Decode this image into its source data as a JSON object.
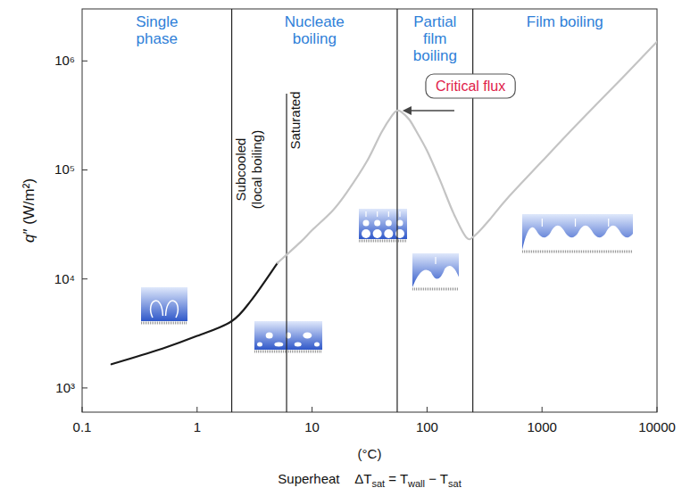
{
  "chart_data": {
    "type": "line",
    "log": true,
    "grid": false,
    "ylabel": "q″ (W/m²)",
    "xlabel": "(°C)",
    "xlabel2": [
      {
        "text": "Superheat    ΔT",
        "sub": false
      },
      {
        "text": "sat",
        "sub": true
      },
      {
        "text": " = T",
        "sub": false
      },
      {
        "text": "wall",
        "sub": true
      },
      {
        "text": " − T",
        "sub": false
      },
      {
        "text": "sat",
        "sub": true
      }
    ],
    "xlim": [
      0.1,
      10000
    ],
    "xticks": [
      0.1,
      1,
      10,
      100,
      1000,
      10000
    ],
    "ylim": [
      600,
      3000000
    ],
    "yticks": [
      {
        "value": 1000,
        "label": "10³"
      },
      {
        "value": 10000,
        "label": "10⁴"
      },
      {
        "value": 100000,
        "label": "10⁵"
      },
      {
        "value": 1000000,
        "label": "10⁶"
      }
    ],
    "regions": [
      "Single phase",
      "Nucleate boiling",
      "Partial film boiling",
      "Film boiling"
    ],
    "boundaries": [
      2,
      55,
      250
    ],
    "sub_boundary": {
      "x": 6,
      "y_top": 500000
    },
    "sub_labels": [
      "Subcooled (local boiling)",
      "Saturated"
    ],
    "annotation": {
      "text": "Critical flux",
      "x": 55,
      "y": 350000
    },
    "series": [
      {
        "color": "#1a1a1a",
        "x": [
          0.18,
          0.5,
          1,
          2,
          3,
          5
        ],
        "values": [
          1650,
          2300,
          3000,
          4100,
          6500,
          14000
        ]
      },
      {
        "color": "#c4c4c4",
        "x": [
          5,
          8,
          10,
          15,
          20,
          30,
          40,
          50,
          55,
          60,
          70,
          80,
          100,
          130,
          170,
          220,
          260,
          350,
          500,
          1000,
          2000,
          5000,
          10000
        ],
        "values": [
          14000,
          22000,
          28000,
          42000,
          62000,
          120000,
          220000,
          320000,
          350000,
          340000,
          290000,
          230000,
          150000,
          80000,
          40000,
          24000,
          25000,
          35000,
          55000,
          120000,
          260000,
          700000,
          1500000
        ]
      }
    ]
  }
}
